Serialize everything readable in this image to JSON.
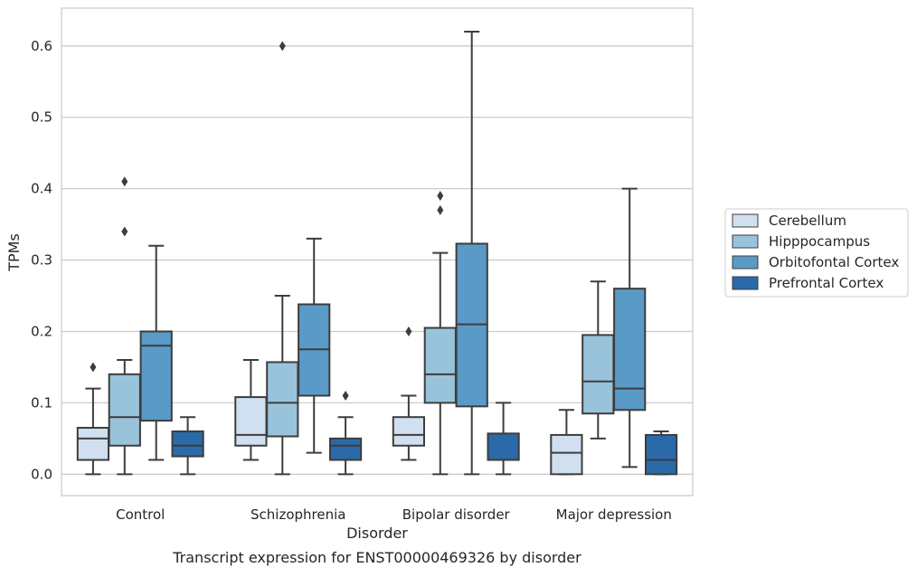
{
  "chart_data": {
    "type": "boxplot",
    "title": "",
    "caption": "Transcript expression for ENST00000469326 by disorder",
    "xlabel": "Disorder",
    "ylabel": "TPMs",
    "ylim": [
      -0.03,
      0.653
    ],
    "yticks": [
      0.0,
      0.1,
      0.2,
      0.3,
      0.4,
      0.5,
      0.6
    ],
    "ytick_labels": [
      "0.0",
      "0.1",
      "0.2",
      "0.3",
      "0.4",
      "0.5",
      "0.6"
    ],
    "grid": "horizontal",
    "legend_position": "right",
    "categories": [
      "Control",
      "Schizophrenia",
      "Bipolar disorder",
      "Major depression"
    ],
    "series": [
      {
        "name": "Cerebellum",
        "color": "#d0e0f0",
        "boxes": [
          {
            "whislo": 0.0,
            "q1": 0.02,
            "med": 0.05,
            "q3": 0.065,
            "whishi": 0.12,
            "fliers": [
              0.15
            ]
          },
          {
            "whislo": 0.02,
            "q1": 0.04,
            "med": 0.055,
            "q3": 0.108,
            "whishi": 0.16,
            "fliers": []
          },
          {
            "whislo": 0.02,
            "q1": 0.04,
            "med": 0.055,
            "q3": 0.08,
            "whishi": 0.11,
            "fliers": [
              0.2
            ]
          },
          {
            "whislo": 0.0,
            "q1": 0.0,
            "med": 0.03,
            "q3": 0.055,
            "whishi": 0.09,
            "fliers": []
          }
        ]
      },
      {
        "name": "Hipppocampus",
        "color": "#99c3db",
        "boxes": [
          {
            "whislo": 0.0,
            "q1": 0.04,
            "med": 0.08,
            "q3": 0.14,
            "whishi": 0.16,
            "fliers": [
              0.34,
              0.41
            ]
          },
          {
            "whislo": 0.0,
            "q1": 0.053,
            "med": 0.1,
            "q3": 0.157,
            "whishi": 0.25,
            "fliers": [
              0.6
            ]
          },
          {
            "whislo": 0.0,
            "q1": 0.1,
            "med": 0.14,
            "q3": 0.205,
            "whishi": 0.31,
            "fliers": [
              0.37,
              0.39
            ]
          },
          {
            "whislo": 0.05,
            "q1": 0.085,
            "med": 0.13,
            "q3": 0.195,
            "whishi": 0.27,
            "fliers": []
          }
        ]
      },
      {
        "name": "Orbitofontal Cortex",
        "color": "#5a9ac7",
        "boxes": [
          {
            "whislo": 0.02,
            "q1": 0.075,
            "med": 0.18,
            "q3": 0.2,
            "whishi": 0.32,
            "fliers": []
          },
          {
            "whislo": 0.03,
            "q1": 0.11,
            "med": 0.175,
            "q3": 0.238,
            "whishi": 0.33,
            "fliers": []
          },
          {
            "whislo": 0.0,
            "q1": 0.095,
            "med": 0.21,
            "q3": 0.323,
            "whishi": 0.62,
            "fliers": []
          },
          {
            "whislo": 0.01,
            "q1": 0.09,
            "med": 0.12,
            "q3": 0.26,
            "whishi": 0.4,
            "fliers": []
          }
        ]
      },
      {
        "name": "Prefrontal Cortex",
        "color": "#2a6aa8",
        "boxes": [
          {
            "whislo": 0.0,
            "q1": 0.025,
            "med": 0.04,
            "q3": 0.06,
            "whishi": 0.08,
            "fliers": []
          },
          {
            "whislo": 0.0,
            "q1": 0.02,
            "med": 0.04,
            "q3": 0.05,
            "whishi": 0.08,
            "fliers": [
              0.11
            ]
          },
          {
            "whislo": 0.0,
            "q1": 0.02,
            "med": 0.02,
            "q3": 0.057,
            "whishi": 0.1,
            "fliers": []
          },
          {
            "whislo": 0.0,
            "q1": 0.0,
            "med": 0.02,
            "q3": 0.055,
            "whishi": 0.06,
            "fliers": []
          }
        ]
      }
    ]
  }
}
